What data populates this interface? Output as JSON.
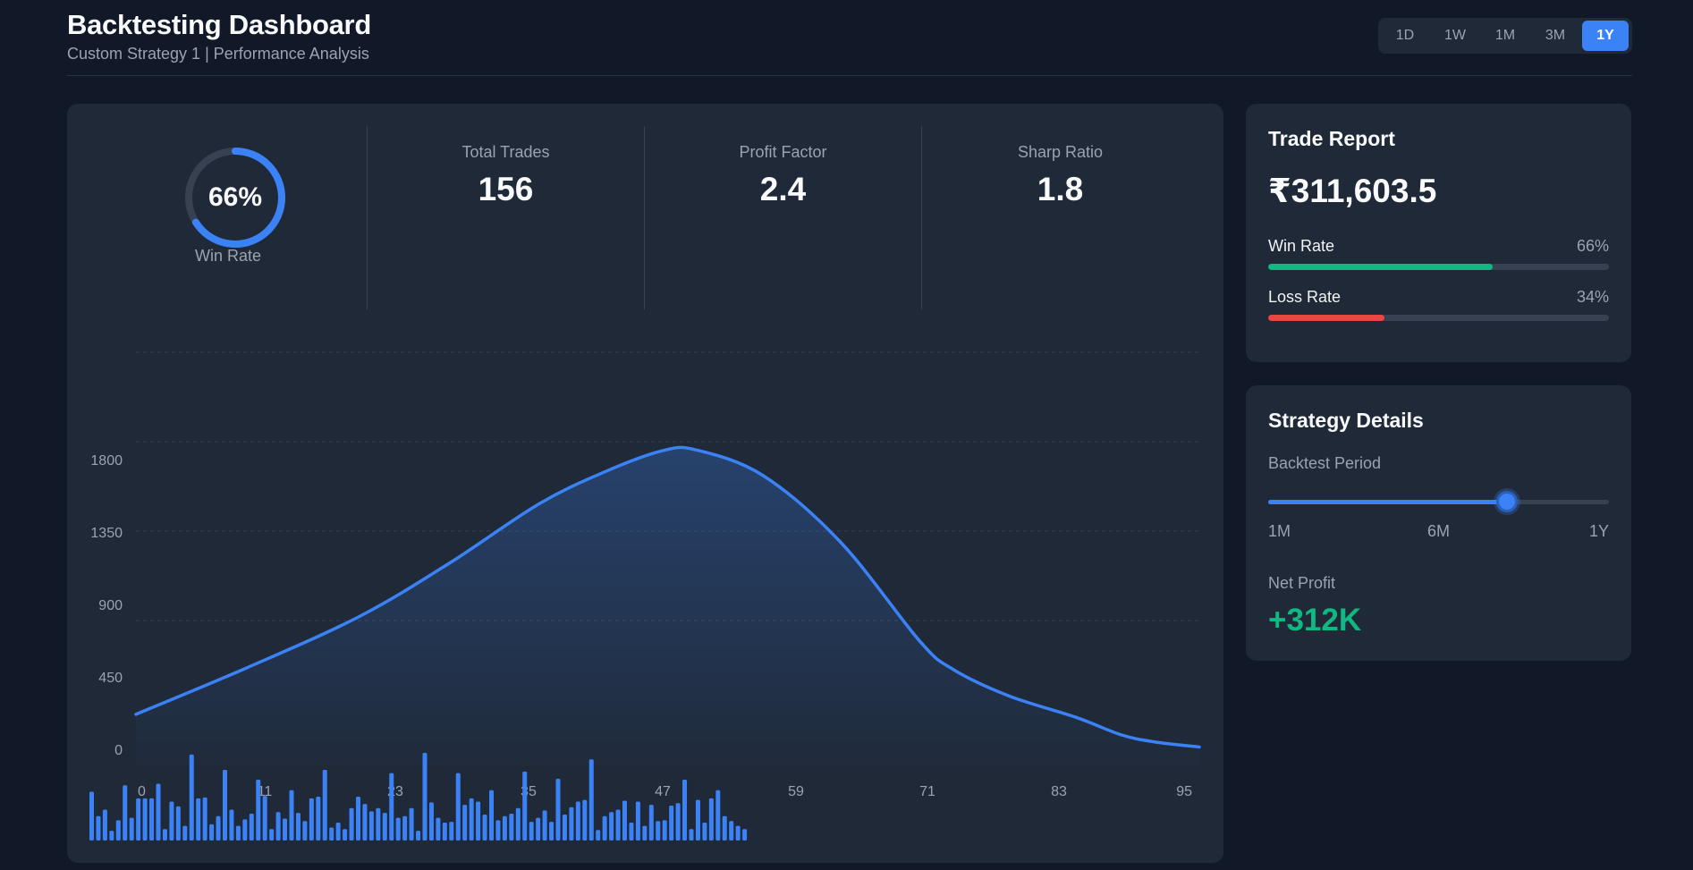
{
  "header": {
    "title": "Backtesting Dashboard",
    "subtitle": "Custom Strategy 1 | Performance Analysis",
    "ranges": [
      {
        "label": "1D",
        "active": false
      },
      {
        "label": "1W",
        "active": false
      },
      {
        "label": "1M",
        "active": false
      },
      {
        "label": "3M",
        "active": false
      },
      {
        "label": "1Y",
        "active": true
      }
    ]
  },
  "stats": {
    "win_rate": {
      "value": "66%",
      "fraction": 0.66,
      "label": "Win Rate"
    },
    "total_trades": {
      "label": "Total Trades",
      "value": "156"
    },
    "profit_factor": {
      "label": "Profit Factor",
      "value": "2.4"
    },
    "sharp_ratio": {
      "label": "Sharp Ratio",
      "value": "1.8"
    }
  },
  "colors": {
    "accent": "#3b82f6",
    "win": "#10b981",
    "loss": "#ef4444",
    "track": "#374151"
  },
  "chart_data": [
    {
      "type": "area",
      "x_ticks": [
        "0",
        "11",
        "23",
        "35",
        "47",
        "59",
        "71",
        "83",
        "95"
      ],
      "y_ticks": [
        "0",
        "450",
        "900",
        "1350",
        "1800"
      ],
      "xlim": [
        0,
        95
      ],
      "ylim": [
        0,
        1800
      ],
      "grid": true,
      "x": [
        0,
        10,
        20,
        28,
        36,
        42,
        47,
        50,
        56,
        63,
        70,
        73,
        78,
        84,
        88,
        91,
        95
      ],
      "y": [
        250,
        480,
        730,
        990,
        1280,
        1440,
        1540,
        1545,
        1420,
        1090,
        610,
        470,
        340,
        235,
        150,
        115,
        90
      ]
    },
    {
      "type": "bar",
      "values": [
        60,
        30,
        38,
        12,
        25,
        68,
        28,
        52,
        52,
        52,
        70,
        14,
        48,
        42,
        18,
        106,
        52,
        53,
        20,
        30,
        87,
        38,
        18,
        26,
        33,
        75,
        55,
        14,
        35,
        27,
        62,
        34,
        24,
        52,
        54,
        87,
        16,
        22,
        14,
        40,
        54,
        45,
        36,
        40,
        34,
        83,
        28,
        30,
        40,
        12,
        108,
        47,
        28,
        22,
        23,
        83,
        44,
        52,
        48,
        32,
        62,
        25,
        30,
        33,
        40,
        85,
        23,
        28,
        37,
        23,
        76,
        32,
        41,
        48,
        50,
        100,
        13,
        30,
        35,
        38,
        49,
        22,
        48,
        18,
        44,
        24,
        25,
        43,
        46,
        75,
        14,
        50,
        22,
        52,
        62,
        30,
        24,
        18,
        14
      ]
    }
  ],
  "trade_report": {
    "title": "Trade Report",
    "amount": "₹311,603.5",
    "win": {
      "label": "Win Rate",
      "value": "66%",
      "fraction": 0.66
    },
    "loss": {
      "label": "Loss Rate",
      "value": "34%",
      "fraction": 0.34
    }
  },
  "strategy": {
    "title": "Strategy Details",
    "period_label": "Backtest Period",
    "period_fraction": 0.7,
    "ticks": [
      "1M",
      "6M",
      "1Y"
    ],
    "net_profit_label": "Net Profit",
    "net_profit_value": "+312K"
  }
}
